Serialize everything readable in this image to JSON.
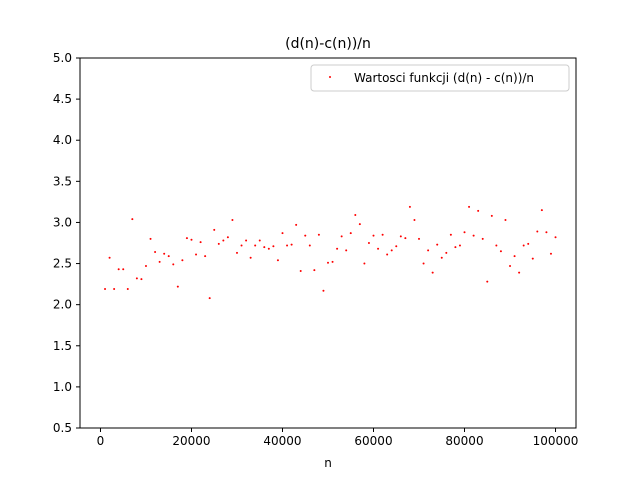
{
  "chart_data": {
    "type": "scatter",
    "title": "(d(n)-c(n))/n",
    "xlabel": "n",
    "ylabel": "",
    "xlim": [
      -4500,
      104500
    ],
    "ylim": [
      0.5,
      5.0
    ],
    "x_ticks": [
      0,
      20000,
      40000,
      60000,
      80000,
      100000
    ],
    "x_tick_labels": [
      "0",
      "20000",
      "40000",
      "60000",
      "80000",
      "100000"
    ],
    "y_ticks": [
      0.5,
      1.0,
      1.5,
      2.0,
      2.5,
      3.0,
      3.5,
      4.0,
      4.5,
      5.0
    ],
    "y_tick_labels": [
      "0.5",
      "1.0",
      "1.5",
      "2.0",
      "2.5",
      "3.0",
      "3.5",
      "4.0",
      "4.5",
      "5.0"
    ],
    "grid": false,
    "legend_position": "upper-right",
    "series": [
      {
        "name": "Wartosci funkcji (d(n) - c(n))/n",
        "color": "#ff0000",
        "marker": "point",
        "x": [
          1000,
          2000,
          3000,
          4000,
          5000,
          6000,
          7000,
          8000,
          9000,
          10000,
          11000,
          12000,
          13000,
          14000,
          15000,
          16000,
          17000,
          18000,
          19000,
          20000,
          21000,
          22000,
          23000,
          24000,
          25000,
          26000,
          27000,
          28000,
          29000,
          30000,
          31000,
          32000,
          33000,
          34000,
          35000,
          36000,
          37000,
          38000,
          39000,
          40000,
          41000,
          42000,
          43000,
          44000,
          45000,
          46000,
          47000,
          48000,
          49000,
          50000,
          51000,
          52000,
          53000,
          54000,
          55000,
          56000,
          57000,
          58000,
          59000,
          60000,
          61000,
          62000,
          63000,
          64000,
          65000,
          66000,
          67000,
          68000,
          69000,
          70000,
          71000,
          72000,
          73000,
          74000,
          75000,
          76000,
          77000,
          78000,
          79000,
          80000,
          81000,
          82000,
          83000,
          84000,
          85000,
          86000,
          87000,
          88000,
          89000,
          90000,
          91000,
          92000,
          93000,
          94000,
          95000,
          96000,
          97000,
          98000,
          99000,
          100000
        ],
        "y": [
          2.19,
          2.57,
          2.19,
          2.43,
          2.43,
          2.19,
          3.04,
          2.32,
          2.31,
          2.47,
          2.8,
          2.64,
          2.52,
          2.62,
          2.59,
          2.49,
          2.22,
          2.54,
          2.81,
          2.79,
          2.61,
          2.76,
          2.59,
          2.08,
          2.91,
          2.74,
          2.78,
          2.82,
          3.03,
          2.63,
          2.72,
          2.78,
          2.57,
          2.72,
          2.78,
          2.7,
          2.68,
          2.71,
          2.54,
          2.87,
          2.72,
          2.73,
          2.97,
          2.41,
          2.84,
          2.72,
          2.42,
          2.85,
          2.17,
          2.51,
          2.52,
          2.68,
          2.83,
          2.66,
          2.87,
          3.09,
          2.98,
          2.5,
          2.75,
          2.84,
          2.68,
          2.85,
          2.61,
          2.66,
          2.71,
          2.83,
          2.81,
          3.19,
          3.03,
          2.8,
          2.5,
          2.66,
          2.39,
          2.73,
          2.57,
          2.63,
          2.85,
          2.7,
          2.72,
          2.88,
          3.19,
          2.84,
          3.14,
          2.8,
          2.28,
          3.08,
          2.72,
          2.65,
          3.03,
          2.47,
          2.59,
          2.39,
          2.72,
          2.74,
          2.56,
          2.89,
          3.15,
          2.88,
          2.62,
          2.82
        ]
      }
    ]
  }
}
